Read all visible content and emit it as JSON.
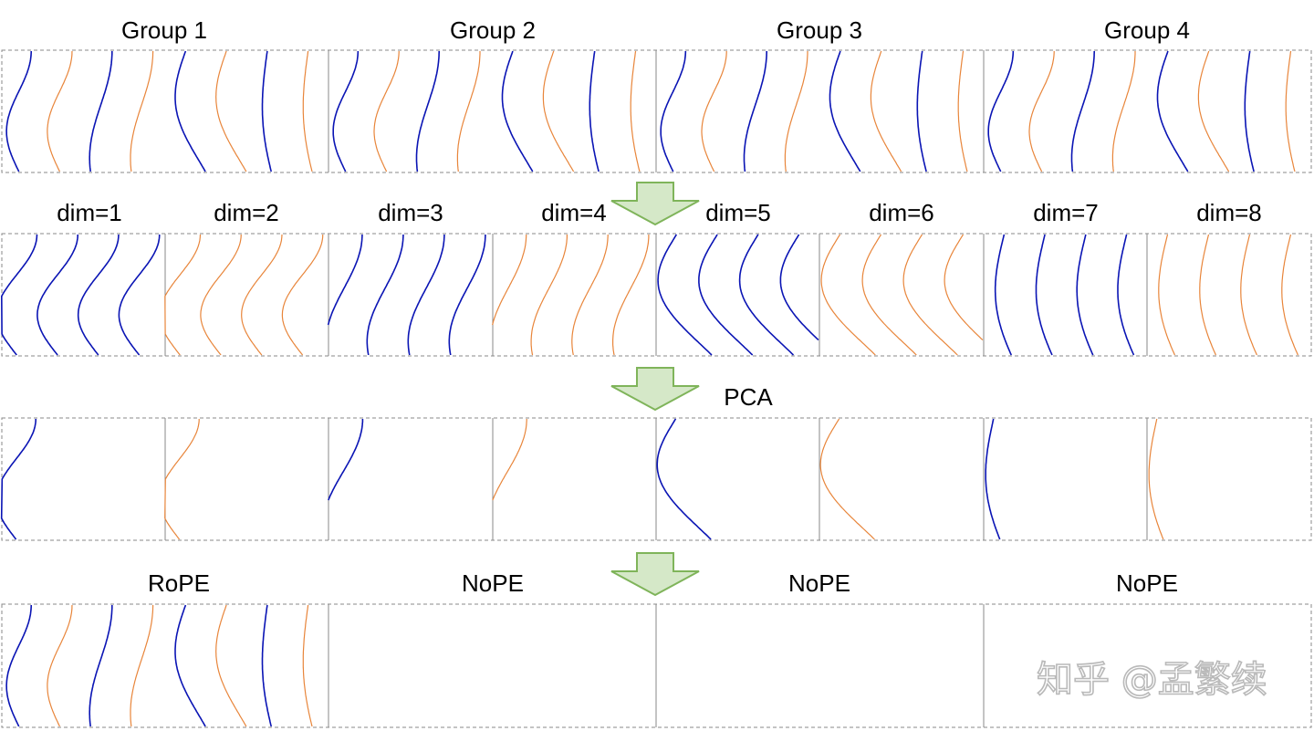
{
  "rows": [
    {
      "id": "groups",
      "labels": [
        "Group 1",
        "Group 2",
        "Group 3",
        "Group 4"
      ]
    },
    {
      "id": "dims",
      "labels": [
        "dim=1",
        "dim=2",
        "dim=3",
        "dim=4",
        "dim=5",
        "dim=6",
        "dim=7",
        "dim=8"
      ]
    },
    {
      "id": "pca",
      "labels": [
        "PCA"
      ]
    },
    {
      "id": "final",
      "labels": [
        "RoPE",
        "NoPE",
        "NoPE",
        "NoPE"
      ]
    }
  ],
  "watermark": "知乎 @孟繁续",
  "colors": {
    "blue_curve": "#0a14b4",
    "orange_curve": "#e8853a",
    "arrow_fill": "#d5e8c8",
    "arrow_stroke": "#7fb45a",
    "box_border": "#888888"
  },
  "icons": {
    "arrow": "down-arrow-icon"
  }
}
